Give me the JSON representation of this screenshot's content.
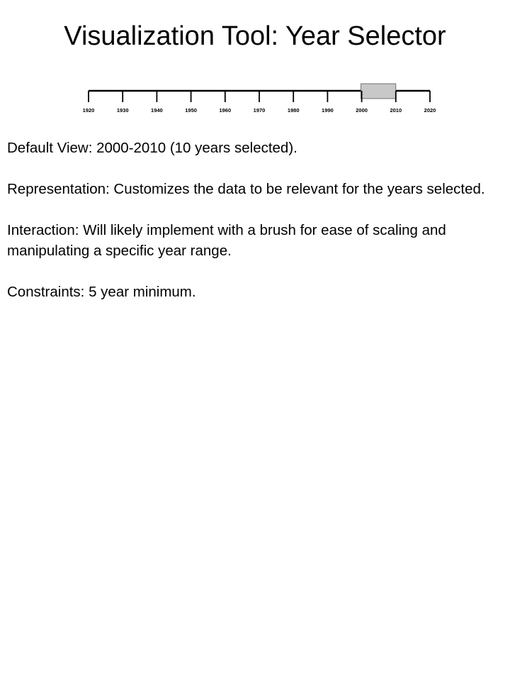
{
  "title": "Visualization Tool: Year Selector",
  "year_selector": {
    "range_min": 1920,
    "range_max": 2020,
    "tick_step": 10,
    "tick_labels": [
      "1920",
      "1930",
      "1940",
      "1950",
      "1960",
      "1970",
      "1980",
      "1990",
      "2000",
      "2010",
      "2020"
    ],
    "selection_start": 2000,
    "selection_end": 2010,
    "brush_color": "#c8c8c8",
    "axis_color": "#000000"
  },
  "paragraphs": [
    "Default View: 2000-2010 (10 years selected).",
    "Representation: Customizes the data to be relevant for the years selected.",
    "Interaction: Will likely implement with a brush for ease of scaling and manipulating a specific year range.",
    "Constraints: 5 year minimum."
  ]
}
